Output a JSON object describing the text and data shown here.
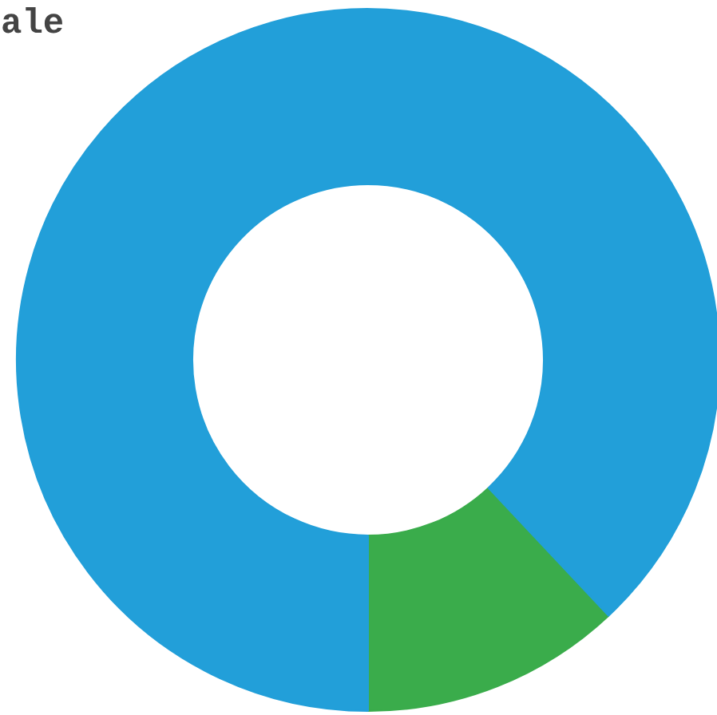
{
  "chart_data": {
    "type": "donut",
    "title": "ale",
    "categories": [
      null,
      null
    ],
    "values": [
      12,
      88
    ],
    "colors": [
      "#3aac4b",
      "#229fd9"
    ]
  }
}
